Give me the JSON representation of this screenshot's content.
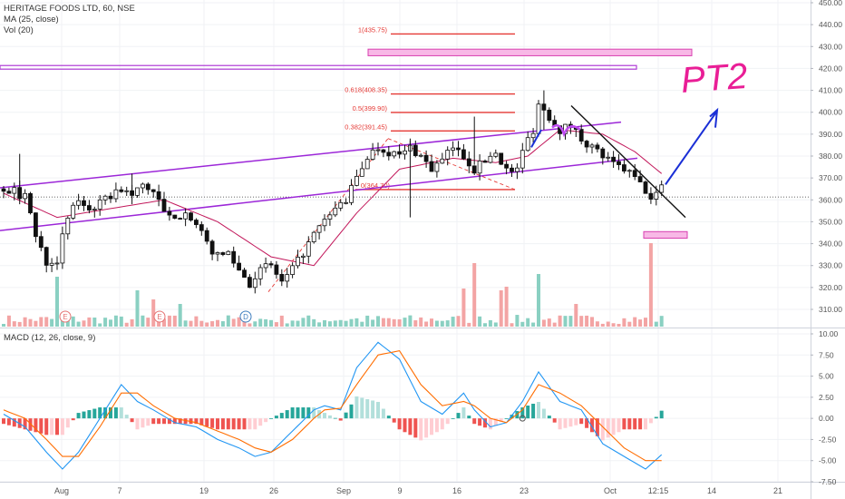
{
  "header": {
    "symbol_line": "HERITAGE FOODS LTD, 60, NSE",
    "ma_label": "MA (25, close)",
    "vol_label": "Vol (20)",
    "macd_label": "MACD (12, 26, close, 9)"
  },
  "annotation_text": "PT2",
  "chart_data": [
    {
      "type": "candlestick",
      "title": "HERITAGE FOODS LTD, 60, NSE",
      "ylim": [
        305,
        450
      ],
      "y_ticks": [
        "310.00",
        "320.00",
        "330.00",
        "340.00",
        "350.00",
        "360.00",
        "370.00",
        "380.00",
        "390.00",
        "400.00",
        "410.00",
        "420.00",
        "430.00",
        "440.00",
        "450.00"
      ],
      "x_tick_labels": [
        "Aug",
        "7",
        "19",
        "26",
        "Sep",
        "9",
        "16",
        "23",
        "Oct",
        "12:15",
        "14",
        "21"
      ],
      "price_anchors": [
        [
          0,
          365
        ],
        [
          2,
          364
        ],
        [
          4,
          361
        ],
        [
          5,
          355
        ],
        [
          6,
          343
        ],
        [
          8,
          332
        ],
        [
          10,
          333
        ],
        [
          12,
          352
        ],
        [
          14,
          360
        ],
        [
          16,
          356
        ],
        [
          18,
          358
        ],
        [
          20,
          362
        ],
        [
          22,
          365
        ],
        [
          24,
          362
        ],
        [
          26,
          367
        ],
        [
          28,
          364
        ],
        [
          30,
          354
        ],
        [
          32,
          350
        ],
        [
          34,
          356
        ],
        [
          36,
          348
        ],
        [
          38,
          340
        ],
        [
          40,
          334
        ],
        [
          42,
          336
        ],
        [
          44,
          328
        ],
        [
          46,
          322
        ],
        [
          48,
          328
        ],
        [
          50,
          330
        ],
        [
          52,
          322
        ],
        [
          54,
          328
        ],
        [
          56,
          336
        ],
        [
          58,
          344
        ],
        [
          60,
          350
        ],
        [
          62,
          356
        ],
        [
          64,
          360
        ],
        [
          66,
          370
        ],
        [
          68,
          380
        ],
        [
          70,
          384
        ],
        [
          72,
          382
        ],
        [
          74,
          380
        ],
        [
          76,
          384
        ],
        [
          78,
          380
        ],
        [
          80,
          374
        ],
        [
          82,
          378
        ],
        [
          84,
          384
        ],
        [
          86,
          380
        ],
        [
          88,
          374
        ],
        [
          90,
          378
        ],
        [
          92,
          382
        ],
        [
          94,
          374
        ],
        [
          95,
          372
        ],
        [
          96,
          375
        ],
        [
          98,
          388
        ],
        [
          99,
          392
        ],
        [
          100,
          404
        ],
        [
          102,
          398
        ],
        [
          104,
          392
        ],
        [
          106,
          394
        ],
        [
          108,
          388
        ],
        [
          110,
          384
        ],
        [
          112,
          380
        ],
        [
          114,
          376
        ],
        [
          116,
          374
        ],
        [
          118,
          370
        ],
        [
          120,
          364
        ],
        [
          121,
          360
        ],
        [
          122,
          362
        ],
        [
          123,
          368
        ]
      ],
      "ma_anchors": [
        [
          0,
          363
        ],
        [
          10,
          352
        ],
        [
          20,
          356
        ],
        [
          30,
          360
        ],
        [
          40,
          350
        ],
        [
          50,
          334
        ],
        [
          58,
          330
        ],
        [
          66,
          354
        ],
        [
          74,
          374
        ],
        [
          84,
          379
        ],
        [
          92,
          377
        ],
        [
          98,
          380
        ],
        [
          104,
          392
        ],
        [
          112,
          390
        ],
        [
          118,
          382
        ],
        [
          123,
          372
        ]
      ],
      "fib_levels": [
        {
          "label": "1(435.75)",
          "value": 435.75
        },
        {
          "label": "0.618(408.35)",
          "value": 408.35
        },
        {
          "label": "0.5(399.90)",
          "value": 399.9
        },
        {
          "label": "0.382(391.45)",
          "value": 391.45
        },
        {
          "label": "0(364.70)",
          "value": 364.7
        }
      ],
      "zones": [
        {
          "name": "upper-zone",
          "low": 425.8,
          "high": 428.8
        },
        {
          "name": "lower-zone",
          "low": 342.5,
          "high": 345.5
        }
      ],
      "resistance_line": 420.5,
      "current_price": 361.3,
      "volume_spikes": [
        [
          10,
          55
        ],
        [
          25,
          40
        ],
        [
          28,
          30
        ],
        [
          33,
          25
        ],
        [
          86,
          42
        ],
        [
          88,
          70
        ],
        [
          93,
          40
        ],
        [
          94,
          44
        ],
        [
          100,
          58
        ],
        [
          107,
          25
        ],
        [
          121,
          92
        ]
      ]
    },
    {
      "type": "line",
      "title": "MACD (12, 26, close, 9)",
      "ylim": [
        -7,
        11
      ],
      "y_ticks": [
        "10.00",
        "7.50",
        "5.00",
        "2.50",
        "0.00",
        "-2.50",
        "-5.00",
        "-7.50"
      ],
      "series": [
        {
          "name": "MACD",
          "color": "#2196f3",
          "anchors": [
            [
              0,
              0.5
            ],
            [
              4,
              -1
            ],
            [
              8,
              -4
            ],
            [
              11,
              -6
            ],
            [
              14,
              -4
            ],
            [
              18,
              0
            ],
            [
              22,
              4
            ],
            [
              25,
              2
            ],
            [
              28,
              1
            ],
            [
              32,
              -0.5
            ],
            [
              36,
              -1
            ],
            [
              40,
              -2.5
            ],
            [
              44,
              -3.5
            ],
            [
              47,
              -4.5
            ],
            [
              50,
              -4
            ],
            [
              54,
              -1.5
            ],
            [
              58,
              1
            ],
            [
              60,
              1.5
            ],
            [
              63,
              1
            ],
            [
              66,
              6
            ],
            [
              70,
              9
            ],
            [
              74,
              7
            ],
            [
              78,
              2
            ],
            [
              82,
              0.5
            ],
            [
              86,
              3
            ],
            [
              88,
              1
            ],
            [
              91,
              -1
            ],
            [
              94,
              -0.5
            ],
            [
              97,
              2
            ],
            [
              100,
              5.5
            ],
            [
              104,
              2
            ],
            [
              108,
              1
            ],
            [
              112,
              -3
            ],
            [
              116,
              -4.5
            ],
            [
              120,
              -6
            ],
            [
              123,
              -4.3
            ]
          ]
        },
        {
          "name": "Signal",
          "color": "#ff6d00",
          "anchors": [
            [
              0,
              1
            ],
            [
              4,
              0
            ],
            [
              8,
              -2.5
            ],
            [
              11,
              -4.5
            ],
            [
              14,
              -4.5
            ],
            [
              18,
              -1
            ],
            [
              22,
              3
            ],
            [
              25,
              3
            ],
            [
              28,
              1.5
            ],
            [
              32,
              0
            ],
            [
              36,
              -0.5
            ],
            [
              40,
              -1.5
            ],
            [
              44,
              -2.5
            ],
            [
              47,
              -3.5
            ],
            [
              50,
              -4
            ],
            [
              54,
              -2.5
            ],
            [
              58,
              0
            ],
            [
              60,
              1
            ],
            [
              63,
              1.2
            ],
            [
              66,
              4
            ],
            [
              70,
              7.5
            ],
            [
              74,
              8
            ],
            [
              78,
              4
            ],
            [
              82,
              1.5
            ],
            [
              86,
              2
            ],
            [
              88,
              1.5
            ],
            [
              91,
              0
            ],
            [
              94,
              -0.5
            ],
            [
              97,
              1
            ],
            [
              100,
              4
            ],
            [
              104,
              3
            ],
            [
              108,
              1.5
            ],
            [
              112,
              -1
            ],
            [
              116,
              -3.5
            ],
            [
              120,
              -5
            ],
            [
              123,
              -5
            ]
          ]
        }
      ]
    }
  ]
}
